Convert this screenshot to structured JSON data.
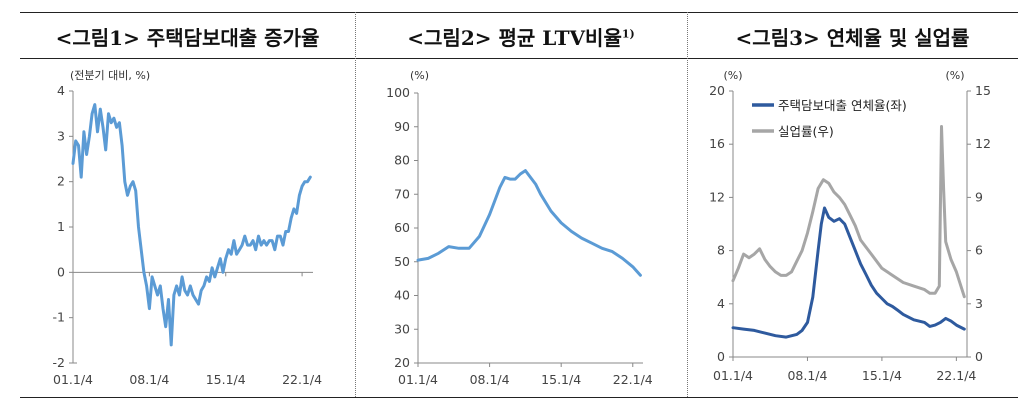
{
  "chart_data": [
    {
      "type": "line",
      "title": "<그림1> 주택담보대출 증가율",
      "unit_label": "(전분기 대비, %)",
      "x_tick_labels": [
        "01.1/4",
        "08.1/4",
        "15.1/4",
        "22.1/4"
      ],
      "x_tick_values": [
        2001,
        2008,
        2015,
        2022
      ],
      "xlim": [
        2001,
        2023
      ],
      "ylim": [
        -2,
        4
      ],
      "y_ticks": [
        -2,
        -1,
        0,
        1,
        2,
        3,
        4
      ],
      "grid": false,
      "series": [
        {
          "name": "",
          "color": "#5b9bd5",
          "x": [
            2001.0,
            2001.25,
            2001.5,
            2001.75,
            2002.0,
            2002.25,
            2002.5,
            2002.75,
            2003.0,
            2003.25,
            2003.5,
            2003.75,
            2004.0,
            2004.25,
            2004.5,
            2004.75,
            2005.0,
            2005.25,
            2005.5,
            2005.75,
            2006.0,
            2006.25,
            2006.5,
            2006.75,
            2007.0,
            2007.25,
            2007.5,
            2007.75,
            2008.0,
            2008.25,
            2008.5,
            2008.75,
            2009.0,
            2009.25,
            2009.5,
            2009.75,
            2010.0,
            2010.25,
            2010.5,
            2010.75,
            2011.0,
            2011.25,
            2011.5,
            2011.75,
            2012.0,
            2012.25,
            2012.5,
            2012.75,
            2013.0,
            2013.25,
            2013.5,
            2013.75,
            2014.0,
            2014.25,
            2014.5,
            2014.75,
            2015.0,
            2015.25,
            2015.5,
            2015.75,
            2016.0,
            2016.25,
            2016.5,
            2016.75,
            2017.0,
            2017.25,
            2017.5,
            2017.75,
            2018.0,
            2018.25,
            2018.5,
            2018.75,
            2019.0,
            2019.25,
            2019.5,
            2019.75,
            2020.0,
            2020.25,
            2020.5,
            2020.75,
            2021.0,
            2021.25,
            2021.5,
            2021.75,
            2022.0,
            2022.25,
            2022.5,
            2022.75
          ],
          "values": [
            2.4,
            2.9,
            2.8,
            2.1,
            3.1,
            2.6,
            3.0,
            3.5,
            3.7,
            3.1,
            3.6,
            3.2,
            2.7,
            3.5,
            3.3,
            3.4,
            3.2,
            3.3,
            2.8,
            2.0,
            1.7,
            1.9,
            2.0,
            1.8,
            1.0,
            0.5,
            0.0,
            -0.3,
            -0.8,
            -0.1,
            -0.3,
            -0.5,
            -0.3,
            -0.8,
            -1.2,
            -0.6,
            -1.6,
            -0.5,
            -0.3,
            -0.5,
            -0.1,
            -0.4,
            -0.5,
            -0.3,
            -0.5,
            -0.6,
            -0.7,
            -0.4,
            -0.3,
            -0.1,
            -0.2,
            0.1,
            -0.1,
            0.1,
            0.3,
            0.0,
            0.3,
            0.5,
            0.4,
            0.7,
            0.4,
            0.5,
            0.6,
            0.8,
            0.6,
            0.6,
            0.7,
            0.5,
            0.8,
            0.6,
            0.7,
            0.6,
            0.7,
            0.7,
            0.5,
            0.8,
            0.8,
            0.6,
            0.9,
            0.9,
            1.2,
            1.4,
            1.3,
            1.7,
            1.9,
            2.0,
            2.0,
            2.1
          ]
        }
      ]
    },
    {
      "type": "line",
      "title": "<그림2> 평균 LTV비율",
      "title_superscript": "1)",
      "unit_label": "(%)",
      "x_tick_labels": [
        "01.1/4",
        "08.1/4",
        "15.1/4",
        "22.1/4"
      ],
      "x_tick_values": [
        2001,
        2008,
        2015,
        2022
      ],
      "xlim": [
        2001,
        2023
      ],
      "ylim": [
        20,
        100
      ],
      "y_ticks": [
        20,
        30,
        40,
        50,
        60,
        70,
        80,
        90,
        100
      ],
      "grid": false,
      "series": [
        {
          "name": "",
          "color": "#5b9bd5",
          "x": [
            2001,
            2002,
            2003,
            2004,
            2005,
            2006,
            2007,
            2008,
            2008.5,
            2009,
            2009.5,
            2010,
            2010.5,
            2011,
            2011.5,
            2012,
            2012.5,
            2013,
            2014,
            2015,
            2016,
            2017,
            2018,
            2019,
            2020,
            2021,
            2022,
            2022.75
          ],
          "values": [
            50.5,
            51.0,
            52.5,
            54.5,
            54.0,
            54.0,
            57.5,
            64.0,
            68.0,
            72.0,
            75.0,
            74.5,
            74.5,
            76.0,
            77.0,
            75.0,
            73.0,
            70.0,
            65.0,
            61.5,
            59.0,
            57.0,
            55.5,
            54.0,
            53.0,
            51.0,
            48.5,
            46.0
          ]
        }
      ]
    },
    {
      "type": "line",
      "title": "<그림3> 연체율 및 실업률",
      "left_unit_label": "(%)",
      "right_unit_label": "(%)",
      "x_tick_labels": [
        "01.1/4",
        "08.1/4",
        "15.1/4",
        "22.1/4"
      ],
      "x_tick_values": [
        2001,
        2008,
        2015,
        2022
      ],
      "xlim": [
        2001,
        2023
      ],
      "ylim_left": [
        0,
        20
      ],
      "y_ticks_left": [
        0,
        4,
        8,
        12,
        16,
        20
      ],
      "ylim_right": [
        0,
        15
      ],
      "y_ticks_right": [
        0,
        3,
        6,
        9,
        12,
        15
      ],
      "grid": false,
      "legend": "top-left",
      "series": [
        {
          "name": "주택담보대출 연체율(좌)",
          "axis": "left",
          "color": "#2e5a9e",
          "x": [
            2001,
            2002,
            2003,
            2004,
            2005,
            2006,
            2007,
            2007.5,
            2008,
            2008.5,
            2009,
            2009.3,
            2009.6,
            2010,
            2010.5,
            2011,
            2011.5,
            2012,
            2012.5,
            2013,
            2013.5,
            2014,
            2014.5,
            2015,
            2015.5,
            2016,
            2016.5,
            2017,
            2018,
            2019,
            2019.5,
            2020,
            2020.5,
            2021,
            2021.5,
            2022,
            2022.75
          ],
          "values": [
            2.2,
            2.1,
            2.0,
            1.8,
            1.6,
            1.5,
            1.7,
            2.0,
            2.6,
            4.5,
            8.0,
            10.0,
            11.2,
            10.5,
            10.2,
            10.4,
            10.0,
            9.0,
            8.0,
            7.0,
            6.2,
            5.4,
            4.8,
            4.4,
            4.0,
            3.8,
            3.5,
            3.2,
            2.8,
            2.6,
            2.3,
            2.4,
            2.6,
            2.9,
            2.7,
            2.4,
            2.1
          ]
        },
        {
          "name": "실업률(우)",
          "axis": "right",
          "color": "#a6a6a6",
          "x": [
            2001,
            2001.5,
            2002,
            2002.5,
            2003,
            2003.5,
            2004,
            2004.5,
            2005,
            2005.5,
            2006,
            2006.5,
            2007,
            2007.5,
            2008,
            2008.5,
            2009,
            2009.5,
            2010,
            2010.5,
            2011,
            2011.5,
            2012,
            2012.5,
            2013,
            2014,
            2015,
            2016,
            2017,
            2018,
            2019,
            2019.5,
            2020,
            2020.4,
            2020.6,
            2020.8,
            2021,
            2021.5,
            2022,
            2022.75
          ],
          "values": [
            4.3,
            5.0,
            5.8,
            5.6,
            5.8,
            6.1,
            5.5,
            5.1,
            4.8,
            4.6,
            4.6,
            4.8,
            5.4,
            6.0,
            7.0,
            8.2,
            9.5,
            10.0,
            9.8,
            9.3,
            9.0,
            8.6,
            8.0,
            7.4,
            6.6,
            5.8,
            5.0,
            4.6,
            4.2,
            4.0,
            3.8,
            3.6,
            3.6,
            4.0,
            13.0,
            9.5,
            6.5,
            5.5,
            4.8,
            3.4
          ]
        }
      ]
    }
  ]
}
